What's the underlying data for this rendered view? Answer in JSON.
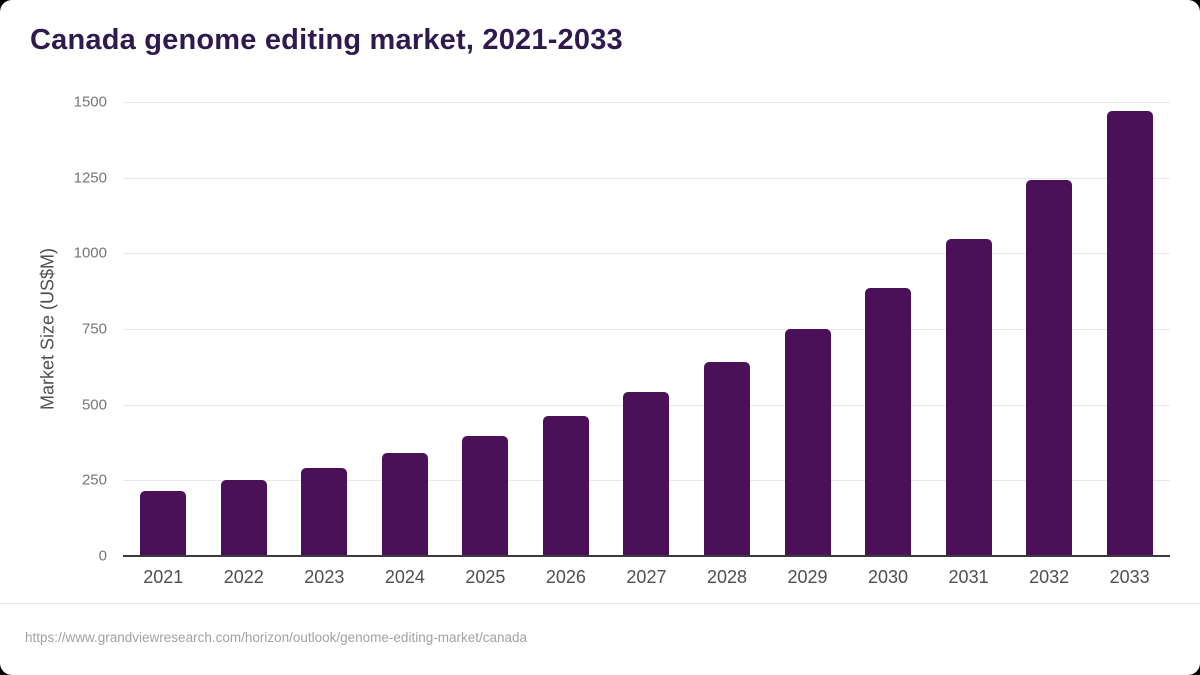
{
  "page": {
    "background_color": "#000000",
    "card_background_color": "#ffffff"
  },
  "header": {
    "title": "Canada genome editing market, 2021-2033",
    "title_color": "#2f1a4d"
  },
  "chart_data": {
    "type": "bar",
    "title": "Canada genome editing market, 2021-2033",
    "categories": [
      "2021",
      "2022",
      "2023",
      "2024",
      "2025",
      "2026",
      "2027",
      "2028",
      "2029",
      "2030",
      "2031",
      "2032",
      "2033"
    ],
    "values": [
      216,
      250,
      292,
      339,
      396,
      462,
      543,
      640,
      751,
      885,
      1047,
      1241,
      1470
    ],
    "xlabel": "",
    "ylabel": "Market Size (US$M)",
    "ylim": [
      0,
      1500
    ],
    "yticks": [
      0,
      250,
      500,
      750,
      1000,
      1250,
      1500
    ],
    "bar_color": "#4a1159",
    "gridline_color": "#e9e9e9",
    "axis_line_color": "#3a3a3a",
    "tick_label_color": "#767676",
    "x_label_color": "#4f4f4f",
    "grid": "horizontal",
    "legend": "none"
  },
  "footer": {
    "source_url": "https://www.grandviewresearch.com/horizon/outlook/genome-editing-market/canada"
  }
}
